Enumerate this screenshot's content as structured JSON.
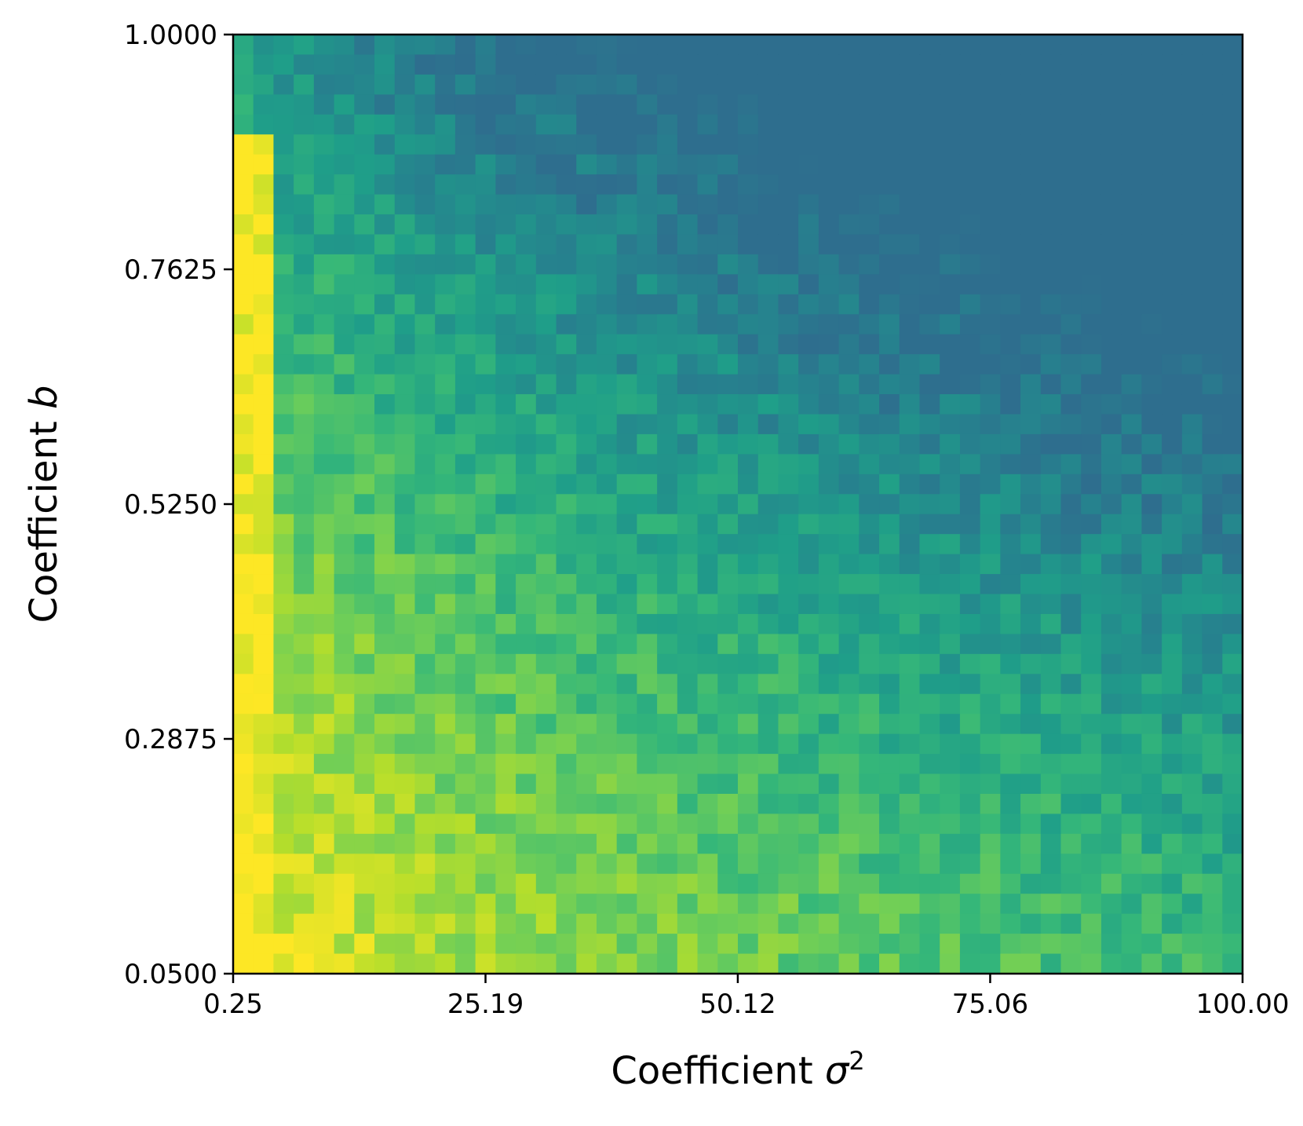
{
  "chart_data": {
    "type": "heatmap",
    "title": "",
    "xlabel": {
      "prefix": "Coefficient ",
      "symbol": "σ",
      "superscript": "2"
    },
    "ylabel": {
      "prefix": "Coefficient ",
      "symbol": "b"
    },
    "xlim": [
      0.25,
      100.0
    ],
    "ylim": [
      0.05,
      1.0
    ],
    "x_ticks": [
      {
        "value": 0.25,
        "label": "0.25"
      },
      {
        "value": 25.19,
        "label": "25.19"
      },
      {
        "value": 50.12,
        "label": "50.12"
      },
      {
        "value": 75.06,
        "label": "75.06"
      },
      {
        "value": 100.0,
        "label": "100.00"
      }
    ],
    "y_ticks": [
      {
        "value": 0.05,
        "label": "0.0500"
      },
      {
        "value": 0.2875,
        "label": "0.2875"
      },
      {
        "value": 0.525,
        "label": "0.5250"
      },
      {
        "value": 0.7625,
        "label": "0.7625"
      },
      {
        "value": 1.0,
        "label": "1.0000"
      }
    ],
    "grid": false,
    "colormap": "viridis",
    "n_cols": 50,
    "n_rows": 47,
    "value_range": [
      0,
      1
    ],
    "value_description": "normalized color intensity (1 = yellow, lower = teal/blue)"
  }
}
